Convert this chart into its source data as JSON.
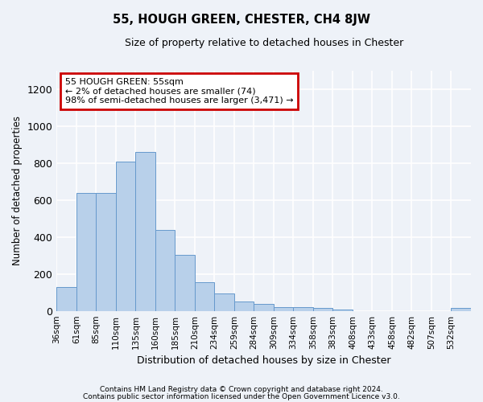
{
  "title": "55, HOUGH GREEN, CHESTER, CH4 8JW",
  "subtitle": "Size of property relative to detached houses in Chester",
  "xlabel": "Distribution of detached houses by size in Chester",
  "ylabel": "Number of detached properties",
  "footnote1": "Contains HM Land Registry data © Crown copyright and database right 2024.",
  "footnote2": "Contains public sector information licensed under the Open Government Licence v3.0.",
  "annotation_title": "55 HOUGH GREEN: 55sqm",
  "annotation_line1": "← 2% of detached houses are smaller (74)",
  "annotation_line2": "98% of semi-detached houses are larger (3,471) →",
  "bar_color": "#b8d0ea",
  "bar_edge_color": "#6699cc",
  "annotation_box_color": "#ffffff",
  "annotation_box_edge": "#cc0000",
  "bg_color": "#eef2f8",
  "grid_color": "#ffffff",
  "bins": [
    "36sqm",
    "61sqm",
    "85sqm",
    "110sqm",
    "135sqm",
    "160sqm",
    "185sqm",
    "210sqm",
    "234sqm",
    "259sqm",
    "284sqm",
    "309sqm",
    "334sqm",
    "358sqm",
    "383sqm",
    "408sqm",
    "433sqm",
    "458sqm",
    "482sqm",
    "507sqm",
    "532sqm"
  ],
  "values": [
    130,
    640,
    640,
    810,
    860,
    440,
    305,
    155,
    95,
    52,
    38,
    20,
    20,
    15,
    8,
    0,
    0,
    0,
    0,
    0,
    15
  ],
  "ylim": [
    0,
    1300
  ],
  "yticks": [
    0,
    200,
    400,
    600,
    800,
    1000,
    1200
  ]
}
